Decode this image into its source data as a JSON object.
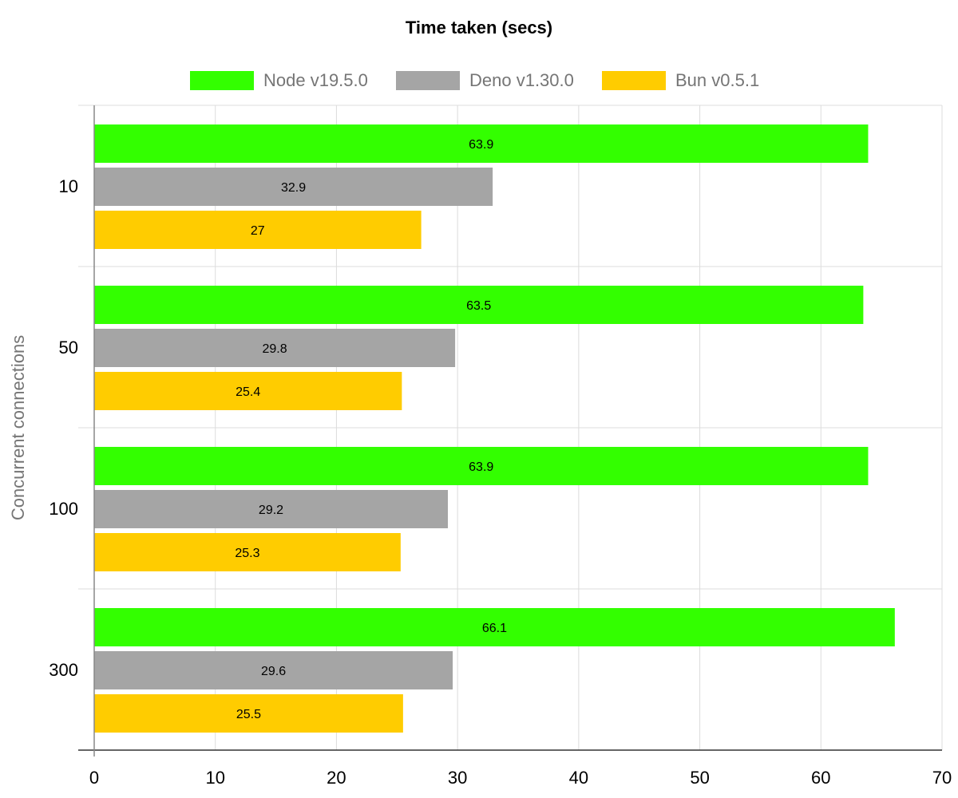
{
  "chart_data": {
    "type": "bar",
    "orientation": "horizontal",
    "title": "Time taken (secs)",
    "ylabel": "Concurrent connections",
    "xlabel": "",
    "categories": [
      "10",
      "50",
      "100",
      "300"
    ],
    "series": [
      {
        "name": "Node v19.5.0",
        "color": "#33ff00",
        "values": [
          63.9,
          63.5,
          63.9,
          66.1
        ]
      },
      {
        "name": "Deno v1.30.0",
        "color": "#a5a5a5",
        "values": [
          32.9,
          29.8,
          29.2,
          29.6
        ]
      },
      {
        "name": "Bun v0.5.1",
        "color": "#ffcc00",
        "values": [
          27,
          25.4,
          25.3,
          25.5
        ]
      }
    ],
    "xlim": [
      0,
      70
    ],
    "x_ticks": [
      "0",
      "10",
      "20",
      "30",
      "40",
      "50",
      "60",
      "70"
    ],
    "grid": true,
    "legend_position": "top"
  }
}
